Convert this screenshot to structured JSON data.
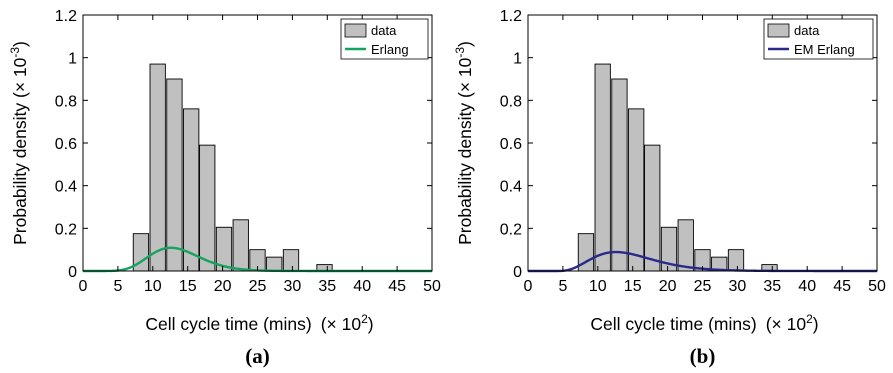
{
  "chart_data": [
    {
      "type": "bar",
      "panel_label": "(a)",
      "xlabel": "Cell cycle time (mins)",
      "xlabel_scale": "(× 10",
      "xlabel_exp": "2",
      "xlabel_close": ")",
      "ylabel": "Probability density (× 10",
      "ylabel_exp": "-3",
      "ylabel_close": ")",
      "xlim": [
        0,
        50
      ],
      "ylim": [
        0,
        1.2
      ],
      "xticks": [
        "0",
        "5",
        "10",
        "15",
        "20",
        "25",
        "30",
        "35",
        "40",
        "45",
        "50"
      ],
      "yticks": [
        "0",
        "0.2",
        "0.4",
        "0.6",
        "0.8",
        "1",
        "1.2"
      ],
      "grid": false,
      "legend_position": "top-right",
      "bar_width": 2.2,
      "bars": {
        "name": "data",
        "x": [
          8.3,
          10.7,
          13.1,
          15.5,
          17.8,
          20.2,
          22.6,
          25.0,
          27.4,
          29.8,
          34.6
        ],
        "values": [
          0.175,
          0.97,
          0.9,
          0.76,
          0.59,
          0.205,
          0.24,
          0.1,
          0.065,
          0.1,
          0.03
        ]
      },
      "curve": {
        "name": "Erlang",
        "shape": 13,
        "scale": 1.05
      },
      "colors": {
        "bars": "#c0c0c0",
        "bar_edge": "#000000",
        "curve": "#16a35f"
      }
    },
    {
      "type": "bar",
      "panel_label": "(b)",
      "xlabel": "Cell cycle time (mins)",
      "xlabel_scale": "(× 10",
      "xlabel_exp": "2",
      "xlabel_close": ")",
      "ylabel": "Probability density (× 10",
      "ylabel_exp": "-3",
      "ylabel_close": ")",
      "xlim": [
        0,
        50
      ],
      "ylim": [
        0,
        1.2
      ],
      "xticks": [
        "0",
        "5",
        "10",
        "15",
        "20",
        "25",
        "30",
        "35",
        "40",
        "45",
        "50"
      ],
      "yticks": [
        "0",
        "0.2",
        "0.4",
        "0.6",
        "0.8",
        "1",
        "1.2"
      ],
      "grid": false,
      "legend_position": "top-right",
      "bar_width": 2.2,
      "bars": {
        "name": "data",
        "x": [
          8.3,
          10.7,
          13.1,
          15.5,
          17.8,
          20.2,
          22.6,
          25.0,
          27.4,
          29.8,
          34.6
        ],
        "values": [
          0.175,
          0.97,
          0.9,
          0.76,
          0.59,
          0.205,
          0.24,
          0.1,
          0.065,
          0.1,
          0.03
        ]
      },
      "curve": {
        "name": "EM Erlang",
        "shape": 5,
        "scale": 2.2,
        "shift": 3.8
      },
      "colors": {
        "bars": "#c0c0c0",
        "bar_edge": "#000000",
        "curve": "#2b2a8c"
      }
    }
  ]
}
